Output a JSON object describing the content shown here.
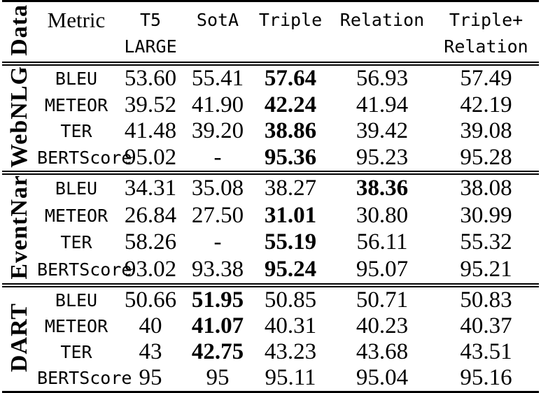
{
  "colors": {
    "text": "#000000",
    "background": "#ffffff",
    "rule": "#000000"
  },
  "table": {
    "corner_label": "Data",
    "metric_header": "Metric",
    "col_headers": [
      {
        "line1": "T5",
        "line2": "LARGE"
      },
      {
        "line1": "SotA",
        "line2": ""
      },
      {
        "line1": "Triple",
        "line2": ""
      },
      {
        "line1": "Relation",
        "line2": ""
      },
      {
        "line1": "Triple+",
        "line2": "Relation"
      }
    ],
    "bold_cells": [
      "0.0.2",
      "0.1.2",
      "0.2.2",
      "0.3.2",
      "1.0.3",
      "1.1.2",
      "1.2.2",
      "1.3.2",
      "2.0.1",
      "2.1.1",
      "2.2.1"
    ],
    "groups": [
      {
        "name": "WebNLG",
        "rows": [
          {
            "metric": "BLEU",
            "values": [
              "53.60",
              "55.41",
              "57.64",
              "56.93",
              "57.49"
            ]
          },
          {
            "metric": "METEOR",
            "values": [
              "39.52",
              "41.90",
              "42.24",
              "41.94",
              "42.19"
            ]
          },
          {
            "metric": "TER",
            "values": [
              "41.48",
              "39.20",
              "38.86",
              "39.42",
              "39.08"
            ]
          },
          {
            "metric": "BERTScore",
            "values": [
              "95.02",
              "-",
              "95.36",
              "95.23",
              "95.28"
            ]
          }
        ]
      },
      {
        "name": "EventNar",
        "rows": [
          {
            "metric": "BLEU",
            "values": [
              "34.31",
              "35.08",
              "38.27",
              "38.36",
              "38.08"
            ]
          },
          {
            "metric": "METEOR",
            "values": [
              "26.84",
              "27.50",
              "31.01",
              "30.80",
              "30.99"
            ]
          },
          {
            "metric": "TER",
            "values": [
              "58.26",
              "-",
              "55.19",
              "56.11",
              "55.32"
            ]
          },
          {
            "metric": "BERTScore",
            "values": [
              "93.02",
              "93.38",
              "95.24",
              "95.07",
              "95.21"
            ]
          }
        ]
      },
      {
        "name": "DART",
        "rows": [
          {
            "metric": "BLEU",
            "values": [
              "50.66",
              "51.95",
              "50.85",
              "50.71",
              "50.83"
            ]
          },
          {
            "metric": "METEOR",
            "values": [
              "40",
              "41.07",
              "40.31",
              "40.23",
              "40.37"
            ]
          },
          {
            "metric": "TER",
            "values": [
              "43",
              "42.75",
              "43.23",
              "43.68",
              "43.51"
            ]
          },
          {
            "metric": "BERTScore",
            "values": [
              "95",
              "95",
              "95.11",
              "95.04",
              "95.16"
            ]
          }
        ]
      }
    ]
  }
}
